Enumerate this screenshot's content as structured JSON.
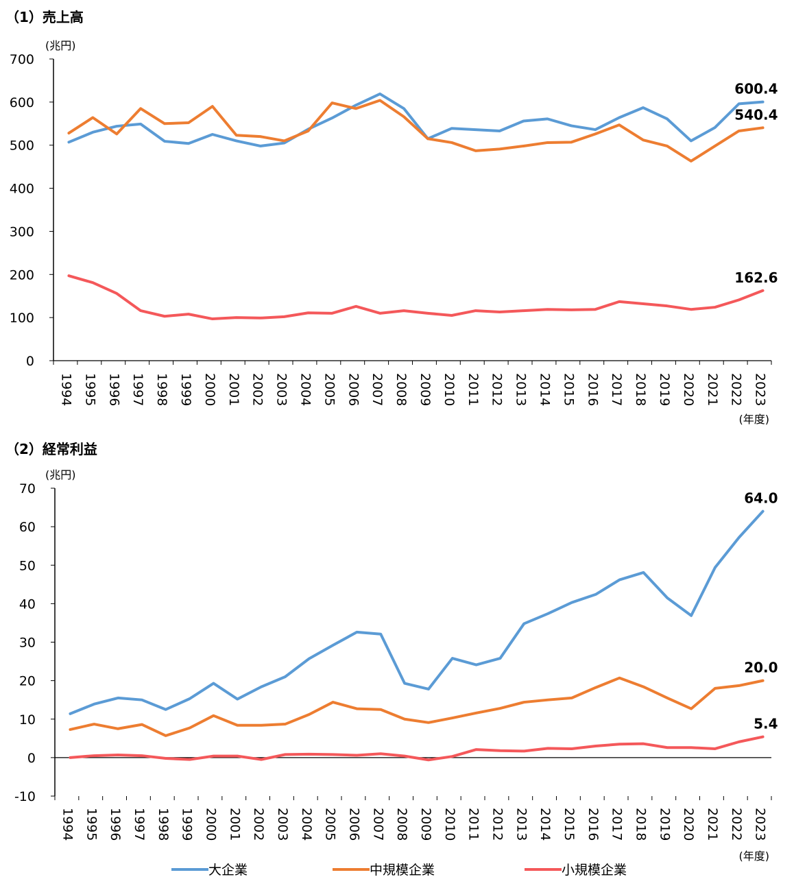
{
  "chart_data": [
    {
      "type": "line",
      "title": "（1）売上高",
      "yunit": "(兆円)",
      "xunit": "(年度)",
      "ylim": [
        0,
        700
      ],
      "yticks": [
        0,
        100,
        200,
        300,
        400,
        500,
        600,
        700
      ],
      "categories": [
        "1994",
        "1995",
        "1996",
        "1997",
        "1998",
        "1999",
        "2000",
        "2001",
        "2002",
        "2003",
        "2004",
        "2005",
        "2006",
        "2007",
        "2008",
        "2009",
        "2010",
        "2011",
        "2012",
        "2013",
        "2014",
        "2015",
        "2016",
        "2017",
        "2018",
        "2019",
        "2020",
        "2021",
        "2022",
        "2023"
      ],
      "series": [
        {
          "name": "大企業",
          "color": "#5B9BD5",
          "end_label": "600.4",
          "values": [
            507,
            530,
            544,
            549,
            509,
            504,
            525,
            510,
            498,
            505,
            537,
            563,
            593,
            619,
            585,
            515,
            539,
            536,
            533,
            556,
            561,
            545,
            536,
            564,
            587,
            561,
            510,
            541,
            596,
            600.4
          ]
        },
        {
          "name": "中規模企業",
          "color": "#ED7D31",
          "end_label": "540.4",
          "values": [
            528,
            564,
            526,
            585,
            550,
            552,
            590,
            523,
            520,
            510,
            533,
            598,
            585,
            604,
            566,
            515,
            506,
            487,
            491,
            498,
            506,
            507,
            526,
            547,
            512,
            498,
            463,
            498,
            533,
            540.4
          ]
        },
        {
          "name": "小規模企業",
          "color": "#F4585A",
          "end_label": "162.6",
          "values": [
            197,
            181,
            156,
            116,
            103,
            108,
            97,
            100,
            99,
            102,
            111,
            110,
            126,
            110,
            116,
            110,
            105,
            116,
            113,
            116,
            119,
            118,
            119,
            137,
            132,
            127,
            119,
            124,
            141,
            162.6
          ]
        }
      ]
    },
    {
      "type": "line",
      "title": "（2）経常利益",
      "yunit": "(兆円)",
      "xunit": "(年度)",
      "ylim": [
        -10,
        70
      ],
      "yticks": [
        -10,
        0,
        10,
        20,
        30,
        40,
        50,
        60,
        70
      ],
      "categories": [
        "1994",
        "1995",
        "1996",
        "1997",
        "1998",
        "1999",
        "2000",
        "2001",
        "2002",
        "2003",
        "2004",
        "2005",
        "2006",
        "2007",
        "2008",
        "2009",
        "2010",
        "2011",
        "2012",
        "2013",
        "2014",
        "2015",
        "2016",
        "2017",
        "2018",
        "2019",
        "2020",
        "2021",
        "2022",
        "2023"
      ],
      "series": [
        {
          "name": "大企業",
          "color": "#5B9BD5",
          "end_label": "64.0",
          "values": [
            11.4,
            13.9,
            15.5,
            15.0,
            12.5,
            15.3,
            19.3,
            15.2,
            18.4,
            21.0,
            25.7,
            29.2,
            32.6,
            32.1,
            19.3,
            17.8,
            25.8,
            24.1,
            25.8,
            34.8,
            37.4,
            40.3,
            42.4,
            46.2,
            48.1,
            41.5,
            36.9,
            49.4,
            57.2,
            64.0
          ]
        },
        {
          "name": "中規模企業",
          "color": "#ED7D31",
          "end_label": "20.0",
          "values": [
            7.3,
            8.7,
            7.5,
            8.6,
            5.7,
            7.7,
            10.9,
            8.4,
            8.4,
            8.7,
            11.2,
            14.4,
            12.7,
            12.5,
            10.0,
            9.1,
            10.3,
            11.6,
            12.8,
            14.4,
            15.0,
            15.5,
            18.2,
            20.7,
            18.4,
            15.5,
            12.7,
            18.0,
            18.7,
            20.0
          ]
        },
        {
          "name": "小規模企業",
          "color": "#F4585A",
          "end_label": "5.4",
          "values": [
            0,
            0.5,
            0.7,
            0.5,
            -0.2,
            -0.5,
            0.4,
            0.4,
            -0.5,
            0.8,
            0.9,
            0.8,
            0.6,
            1.0,
            0.4,
            -0.6,
            0.3,
            2.1,
            1.8,
            1.7,
            2.4,
            2.3,
            3.0,
            3.5,
            3.6,
            2.6,
            2.6,
            2.3,
            4.1,
            5.4
          ]
        }
      ]
    }
  ],
  "legend": {
    "placement": "bottom",
    "items": [
      "大企業",
      "中規模企業",
      "小規模企業"
    ]
  }
}
